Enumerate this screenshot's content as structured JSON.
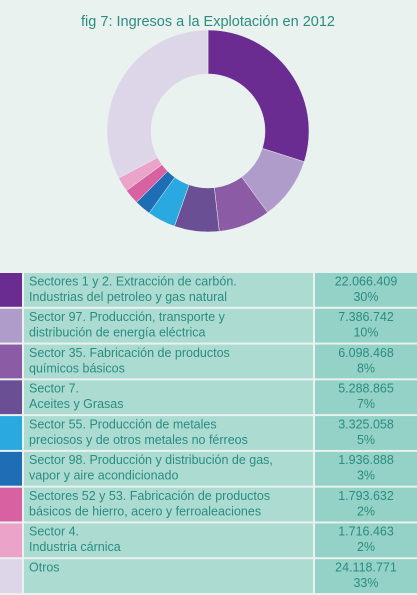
{
  "chart_data": {
    "type": "donut",
    "title": "fig 7: Ingresos a la Explotación en 2012",
    "categories": [
      [
        "Sectores 1 y 2. Extracción de carbón.",
        "Industrias del petroleo y gas natural"
      ],
      [
        "Sector 97. Producción, transporte y",
        "distribución de energía eléctrica"
      ],
      [
        "Sector 35. Fabricación de productos",
        "químicos básicos"
      ],
      [
        "Sector 7.",
        "Aceites y Grasas"
      ],
      [
        "Sector 55. Producción de metales",
        "preciosos y de otros metales no férreos"
      ],
      [
        "Sector 98. Producción y distribución de gas,",
        "vapor y aire acondicionado"
      ],
      [
        "Sectores 52 y 53. Fabricación de productos",
        "básicos de hierro, acero y ferroaleaciones"
      ],
      [
        "Sector 4.",
        "Industria cárnica"
      ],
      [
        "Otros"
      ]
    ],
    "values": [
      22066409,
      7386742,
      6098468,
      5288865,
      3325058,
      1936888,
      1793632,
      1716463,
      24118771
    ],
    "value_labels": [
      "22.066.409",
      "7.386.742",
      "6.098.468",
      "5.288.865",
      "3.325.058",
      "1.936.888",
      "1.793.632",
      "1.716.463",
      "24.118.771"
    ],
    "percents": [
      30,
      10,
      8,
      7,
      5,
      3,
      2,
      2,
      33
    ],
    "percent_labels": [
      "30%",
      "10%",
      "8%",
      "7%",
      "5%",
      "3%",
      "2%",
      "2%",
      "33%"
    ],
    "colors": [
      "#6a2c91",
      "#b09ccb",
      "#8b5ba6",
      "#6b4f95",
      "#2aa8e0",
      "#1f6db5",
      "#d861a2",
      "#eba3c9",
      "#ddd6e9"
    ]
  }
}
